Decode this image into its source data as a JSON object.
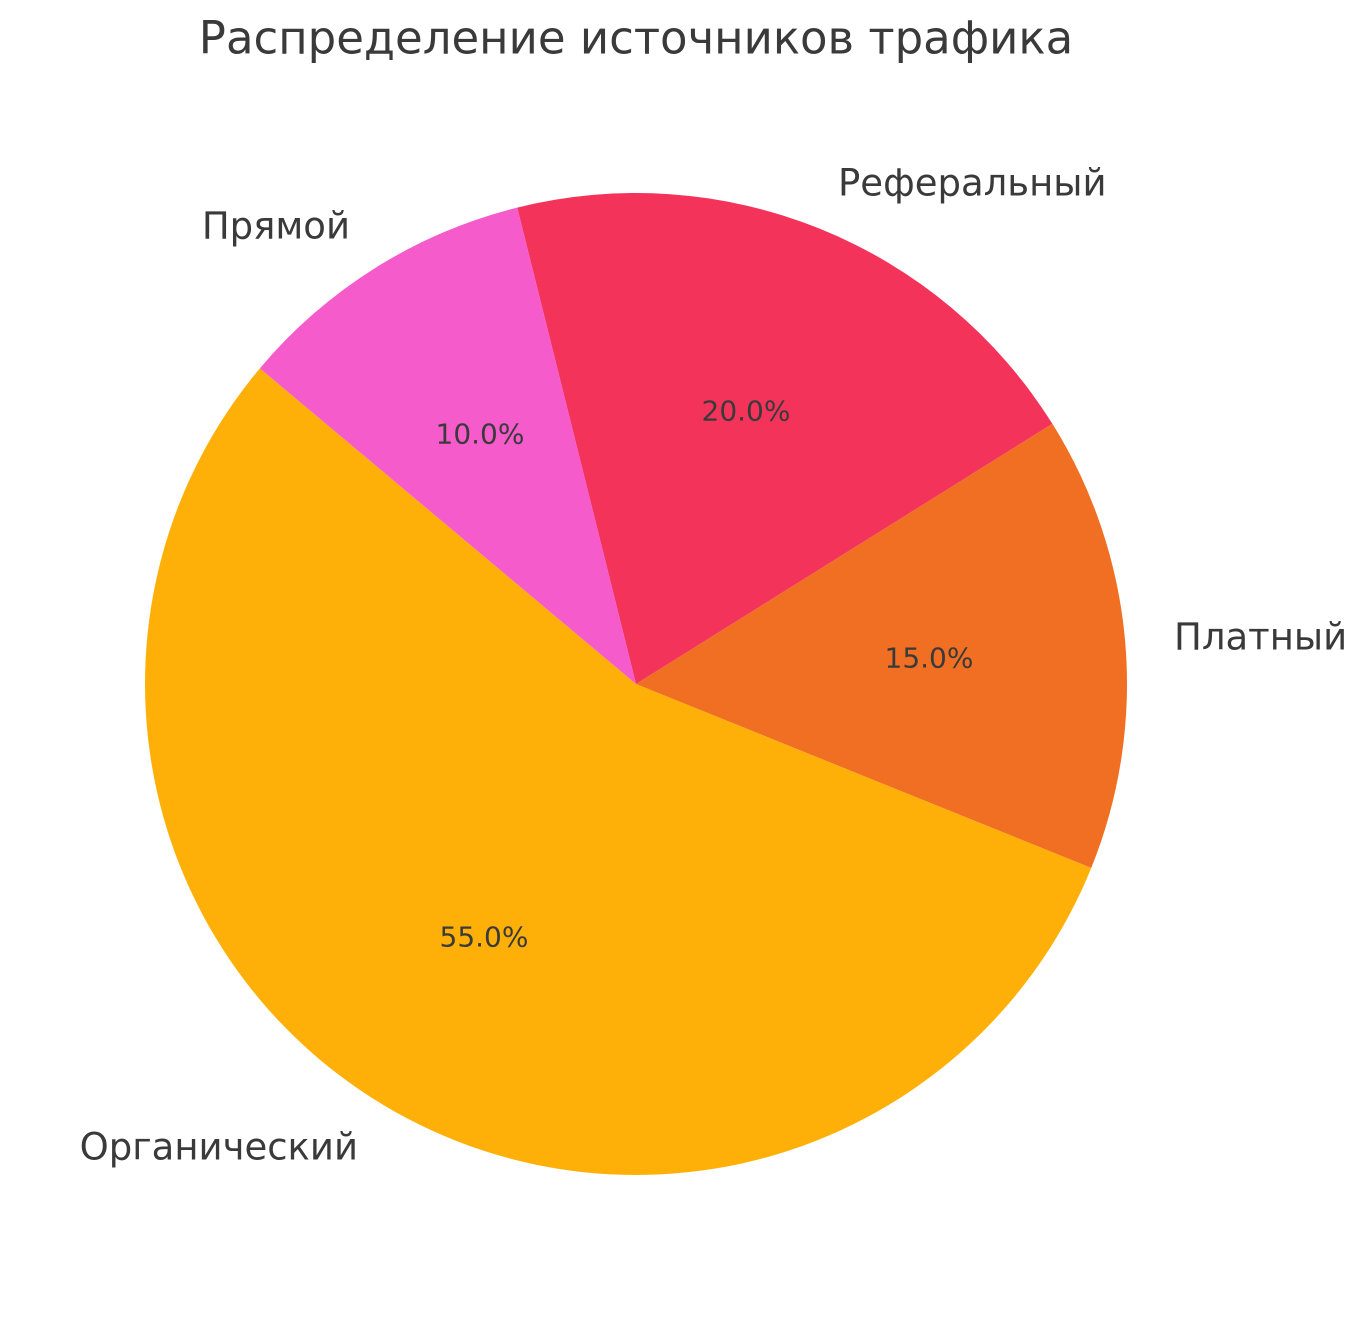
{
  "chart_data": {
    "type": "pie",
    "title": "Распределение источников трафика",
    "categories": [
      "Органический",
      "Платный",
      "Реферальный",
      "Прямой"
    ],
    "values": [
      55.0,
      15.0,
      20.0,
      10.0
    ],
    "slices": [
      {
        "label": "Органический",
        "value": 55.0,
        "pct_label": "55.0%",
        "color": "#FFB008"
      },
      {
        "label": "Платный",
        "value": 15.0,
        "pct_label": "15.0%",
        "color": "#F06F23"
      },
      {
        "label": "Реферальный",
        "value": 20.0,
        "pct_label": "20.0%",
        "color": "#F4335B"
      },
      {
        "label": "Прямой",
        "value": 10.0,
        "pct_label": "10.0%",
        "color": "#F65BCB"
      }
    ],
    "start_angle": 140,
    "counterclockwise": true,
    "legend": "none",
    "grid": false,
    "text_color": "#3a3a3a",
    "background_color": "#ffffff"
  }
}
